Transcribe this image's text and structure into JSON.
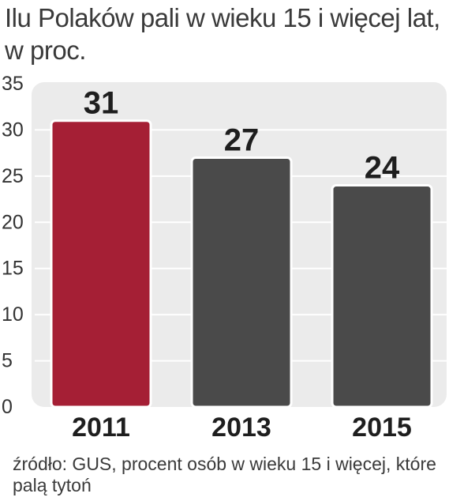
{
  "title": "Ilu Polaków pali w wieku 15 i więcej lat, w proc.",
  "source_note": "źródło: GUS, procent osób w wieku 15 i więcej, które palą tytoń",
  "colors": {
    "highlight_bar": "#a51f35",
    "bar": "#4a4a4a",
    "plot_background": "#ebebeb",
    "gridline": "#ffffff",
    "text": "#333333"
  },
  "chart_data": {
    "type": "bar",
    "categories": [
      "2011",
      "2013",
      "2015"
    ],
    "values": [
      31,
      27,
      24
    ],
    "data_labels": [
      "31",
      "27",
      "24"
    ],
    "highlight_index": 0,
    "ylim": [
      0,
      35
    ],
    "yticks": [
      0,
      5,
      10,
      15,
      20,
      25,
      30,
      35
    ],
    "grid": true,
    "legend": "none",
    "title": "Ilu Polaków pali w wieku 15 i więcej lat, w proc.",
    "xlabel": "",
    "ylabel": ""
  }
}
